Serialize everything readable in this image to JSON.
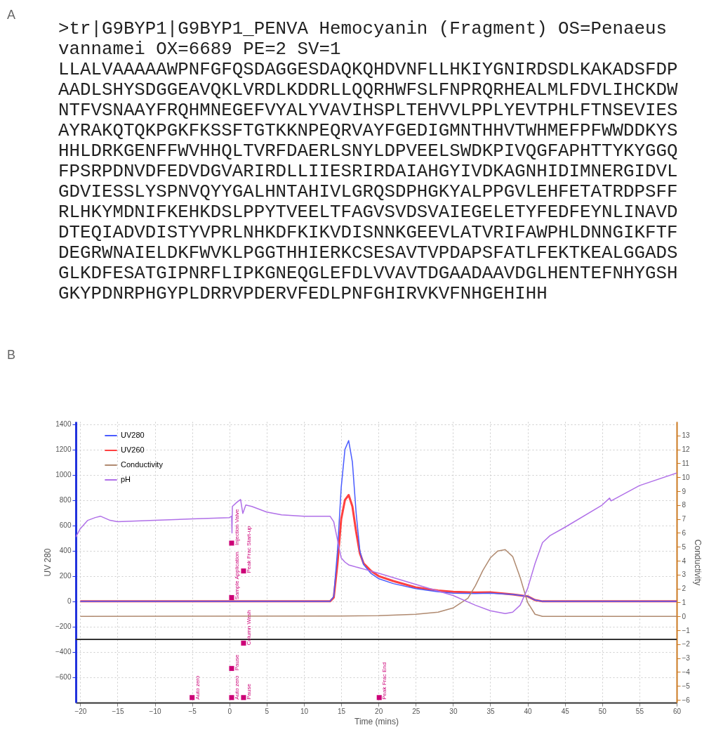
{
  "chart_data": {
    "type": "line",
    "xlabel": "Time (mins)",
    "ylabel": "UV 280",
    "y2label": "Conductivity",
    "xlim": [
      -20.6,
      60
    ],
    "xticks": [
      -20,
      -15,
      -10,
      -5,
      0,
      5,
      10,
      15,
      20,
      25,
      30,
      35,
      40,
      45,
      50,
      55,
      60
    ],
    "ylim": [
      -800,
      1420
    ],
    "yticks": [
      -600,
      -400,
      -200,
      0,
      200,
      400,
      600,
      800,
      1000,
      1200,
      1400
    ],
    "y2lim": [
      -6.2,
      14.0
    ],
    "y2ticks": [
      -6,
      -5,
      -4,
      -3,
      -2,
      -1,
      0,
      1,
      2,
      3,
      4,
      5,
      6,
      7,
      8,
      9,
      10,
      11,
      12,
      13
    ],
    "grid": true,
    "legend": "top left",
    "line_style": "solid",
    "ref_lines": [
      {
        "axis": "y",
        "value": -300,
        "color": "#333333"
      }
    ],
    "series": [
      {
        "name": "UV280",
        "color": "#4a5cff",
        "x": [
          -20,
          13.5,
          14,
          14.5,
          15,
          15.5,
          16,
          16.5,
          17,
          17.5,
          18,
          19,
          20,
          22,
          25,
          28,
          30,
          33,
          35,
          38,
          40,
          41,
          42,
          60
        ],
        "values": [
          0,
          0,
          40,
          400,
          900,
          1200,
          1270,
          1100,
          700,
          400,
          290,
          220,
          180,
          140,
          100,
          75,
          65,
          62,
          65,
          55,
          40,
          10,
          0,
          0
        ]
      },
      {
        "name": "UV260",
        "color": "#ff4040",
        "x": [
          -20,
          13.5,
          14,
          14.5,
          15,
          15.5,
          16,
          16.5,
          17,
          17.5,
          18,
          19,
          20,
          22,
          25,
          28,
          30,
          33,
          35,
          38,
          40,
          41,
          42,
          60
        ],
        "values": [
          0,
          0,
          30,
          300,
          650,
          800,
          840,
          750,
          550,
          380,
          300,
          240,
          200,
          160,
          110,
          85,
          75,
          70,
          72,
          55,
          40,
          10,
          0,
          0
        ]
      },
      {
        "name": "Conductivity",
        "color": "#b08a70",
        "axis": "y2",
        "x": [
          -20,
          15,
          20,
          25,
          28,
          30,
          32,
          33,
          34,
          35,
          36,
          37,
          38,
          39,
          40,
          41,
          42,
          60
        ],
        "values": [
          0,
          0.02,
          0.05,
          0.15,
          0.3,
          0.6,
          1.3,
          2.2,
          3.3,
          4.2,
          4.7,
          4.8,
          4.3,
          2.8,
          1.0,
          0.15,
          0,
          0
        ]
      },
      {
        "name": "pH",
        "color": "#b070e8",
        "axis": "y2",
        "x": [
          -20.6,
          -20,
          -19,
          -18,
          -17.3,
          -16,
          -15,
          -10,
          -5,
          0,
          0.3,
          0.35,
          0.4,
          1,
          1.5,
          1.8,
          2.2,
          3,
          5,
          7,
          10,
          13.5,
          14,
          14.5,
          15,
          15.5,
          16,
          18,
          20,
          25,
          30,
          33,
          35,
          37,
          38,
          39,
          40,
          41,
          42,
          43,
          45,
          50,
          51,
          51.2,
          55,
          60
        ],
        "values": [
          5.7,
          6.3,
          6.9,
          7.1,
          7.2,
          6.9,
          6.8,
          6.9,
          7.0,
          7.1,
          7.2,
          6.0,
          7.9,
          8.2,
          8.4,
          7.4,
          8.0,
          7.9,
          7.5,
          7.3,
          7.2,
          7.2,
          6.8,
          5.5,
          4.2,
          3.9,
          3.7,
          3.4,
          3.1,
          2.3,
          1.5,
          0.8,
          0.4,
          0.2,
          0.3,
          0.8,
          2.0,
          3.8,
          5.3,
          5.8,
          6.4,
          8.0,
          8.5,
          8.3,
          9.4,
          10.3
        ]
      },
      {
        "type": "scatter",
        "marker": "square",
        "color": "#cc0077",
        "x": [
          -5,
          0.3,
          0.3,
          1.9,
          1.9,
          0.3,
          0.3,
          1.9,
          20.1
        ],
        "values": [
          -760,
          30,
          460,
          240,
          -330,
          -760,
          -530,
          -760,
          -760
        ]
      }
    ],
    "annotations": [
      "A",
      ">tr|G9BYP1|G9BYP1_PENVA Hemocyanin (Fragment) OS=Penaeus",
      "vannamei OX=6689 PE=2 SV=1",
      "LLALVAAAAAWPNFGFQSDAGGESDAQKQHDVNFLLHKIYGNIRDSDLKAKADSFDP",
      "AADLSHYSDGGEAVQKLVRDLKDDRLLQQRHWFSLFNPRQRHEALMLFDVLIHCKDW",
      "NTFVSNAAYFRQHMNEGEFVYALYVAVIHSPLTEHVVLPPLYEVTPHLFTNSEVIES",
      "AYRAKQTQKPGKFKSSFTGTKKNPEQRVAYFGEDIGMNTHHVTWHMEFPFWWDDKYS",
      "HHLDRKGENFFWVHHQLTVRFDAERLSNYLDPVEELSWDKPIVQGFAPHTTYKYGGQ",
      "FPSRPDNVDFEDVDGVARIRDLLIIESRIRDAIAHGYIVDKAGNHIDIMNERGIDVL",
      "GDVIESSLYSPNVQYYGALHNTAHIVLGRQSDPHGKYALPPGVLEHFETATRDPSFF",
      "RLHKYMDNIFKEHKDSLPPYTVEELTFAGVSVDSVAIEGELETYFEDFEYNLINAVD",
      "DTEQIADVDISTYVPRLNHKDFKIKVDISNNKGEEVLATVRIFAWPHLDNNGIKFTF",
      "DEGRWNAIELDKFWVKLPGGTHHIERKCSESAVTVPDAPSFATLFEKTKEALGGADS",
      "GLKDFESATGIPNRFLIPKGNEQGLEFDLVVAVTDGAADAAVDGLHENTEFNHYGSH",
      "GKYPDNRPHGYPLDRRVPDERVFEDLPNFGHIRVKVFNHGEHIHH",
      "B",
      {
        "text": "Auto zero",
        "x": -5,
        "y": -760
      },
      {
        "text": "Sample Application",
        "x": 0.3,
        "y": 30
      },
      {
        "text": "Injection Valve",
        "x": 0.3,
        "y": 460
      },
      {
        "text": "Peak Frac Start-up",
        "x": 1.9,
        "y": 240
      },
      {
        "text": "Column Wash",
        "x": 1.9,
        "y": -330
      },
      {
        "text": "Auto zero",
        "x": 0.3,
        "y": -760
      },
      {
        "text": "Pause",
        "x": 0.3,
        "y": -530
      },
      {
        "text": "Pause",
        "x": 1.9,
        "y": -760
      },
      {
        "text": "Peak Frac End",
        "x": 20.1,
        "y": -760
      }
    ]
  }
}
